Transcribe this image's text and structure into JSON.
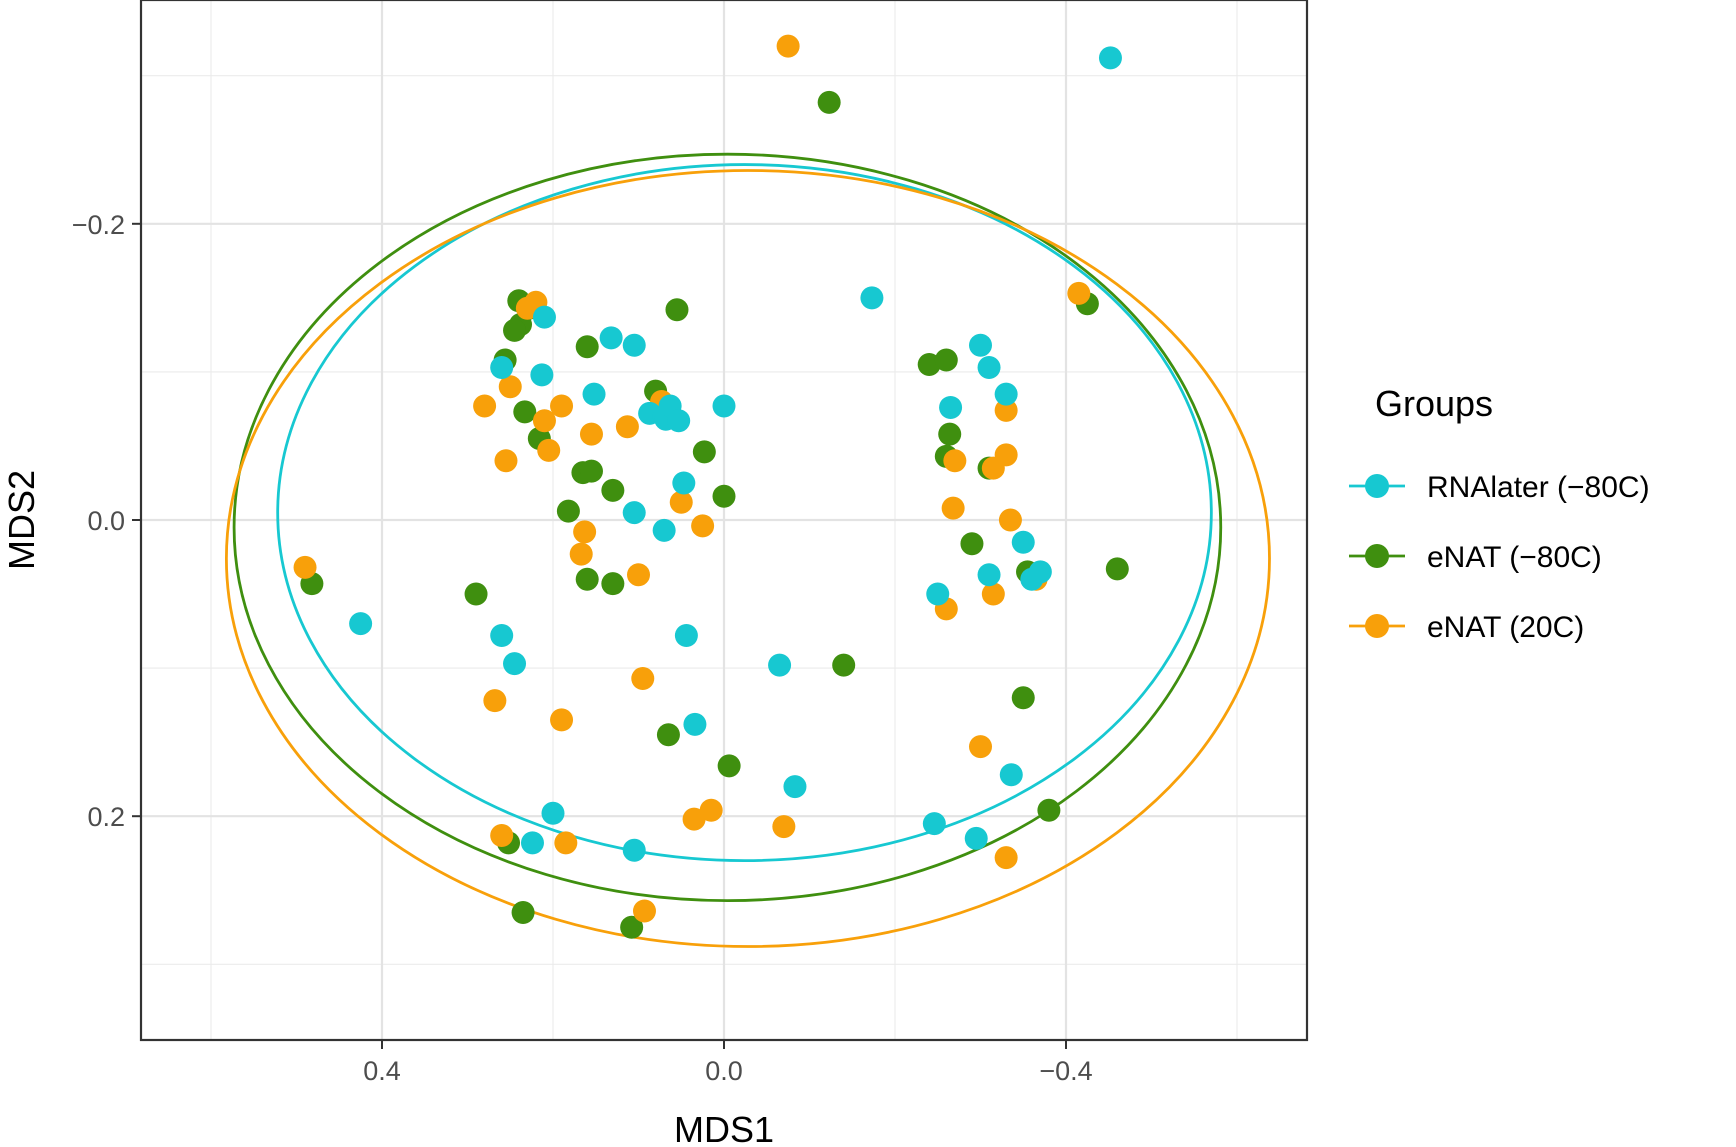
{
  "chart_data": {
    "type": "scatter",
    "xlabel": "MDS1",
    "ylabel": "MDS2",
    "x_reversed": true,
    "y_reversed": true,
    "xlim": [
      0.68,
      -0.68
    ],
    "ylim": [
      -0.35,
      0.35
    ],
    "x_ticks": [
      0.4,
      0.0,
      -0.4
    ],
    "x_tick_labels": [
      "0.4",
      "0.0",
      "−0.4"
    ],
    "y_ticks": [
      -0.2,
      0.0,
      0.2
    ],
    "y_tick_labels": [
      "−0.2",
      "0.0",
      "0.2"
    ],
    "grid": true,
    "legend": {
      "title": "Groups",
      "position": "right"
    },
    "series": [
      {
        "name": "RNAlater (−80C)",
        "color": "#17c8d1",
        "ellipse": {
          "center": [
            -0.024,
            -0.005
          ],
          "rx": 0.546,
          "ry": 0.235
        },
        "points": [
          [
            -0.452,
            -0.312
          ],
          [
            -0.173,
            -0.15
          ],
          [
            -0.3,
            -0.118
          ],
          [
            -0.31,
            -0.103
          ],
          [
            -0.33,
            -0.085
          ],
          [
            -0.265,
            -0.076
          ],
          [
            0.132,
            -0.123
          ],
          [
            0.105,
            -0.118
          ],
          [
            0.21,
            -0.137
          ],
          [
            0.26,
            -0.103
          ],
          [
            0.213,
            -0.098
          ],
          [
            0.152,
            -0.085
          ],
          [
            0.087,
            -0.072
          ],
          [
            0.07,
            -0.07
          ],
          [
            0.068,
            -0.068
          ],
          [
            0.063,
            -0.077
          ],
          [
            0.053,
            -0.067
          ],
          [
            0.0,
            -0.077
          ],
          [
            0.047,
            -0.025
          ],
          [
            0.105,
            -0.005
          ],
          [
            0.07,
            0.007
          ],
          [
            -0.35,
            0.015
          ],
          [
            -0.36,
            0.04
          ],
          [
            -0.37,
            0.035
          ],
          [
            -0.31,
            0.037
          ],
          [
            -0.25,
            0.05
          ],
          [
            0.425,
            0.07
          ],
          [
            0.26,
            0.078
          ],
          [
            0.245,
            0.097
          ],
          [
            0.044,
            0.078
          ],
          [
            -0.065,
            0.098
          ],
          [
            0.034,
            0.138
          ],
          [
            -0.336,
            0.172
          ],
          [
            -0.083,
            0.18
          ],
          [
            0.2,
            0.198
          ],
          [
            -0.246,
            0.205
          ],
          [
            0.224,
            0.218
          ],
          [
            0.105,
            0.223
          ],
          [
            -0.295,
            0.215
          ]
        ]
      },
      {
        "name": "eNAT (−80C)",
        "color": "#3f8f0f",
        "ellipse": {
          "center": [
            -0.004,
            0.005
          ],
          "rx": 0.577,
          "ry": 0.252
        },
        "points": [
          [
            -0.123,
            -0.282
          ],
          [
            -0.425,
            -0.146
          ],
          [
            0.055,
            -0.142
          ],
          [
            0.24,
            -0.148
          ],
          [
            0.228,
            -0.143
          ],
          [
            0.238,
            -0.132
          ],
          [
            0.245,
            -0.128
          ],
          [
            0.16,
            -0.117
          ],
          [
            0.256,
            -0.108
          ],
          [
            -0.24,
            -0.105
          ],
          [
            -0.26,
            -0.108
          ],
          [
            0.08,
            -0.087
          ],
          [
            0.233,
            -0.073
          ],
          [
            -0.264,
            -0.058
          ],
          [
            0.216,
            -0.055
          ],
          [
            -0.26,
            -0.043
          ],
          [
            0.023,
            -0.046
          ],
          [
            -0.31,
            -0.035
          ],
          [
            0.165,
            -0.032
          ],
          [
            0.155,
            -0.033
          ],
          [
            0.13,
            -0.02
          ],
          [
            0.0,
            -0.016
          ],
          [
            0.182,
            -0.006
          ],
          [
            -0.29,
            0.016
          ],
          [
            -0.46,
            0.033
          ],
          [
            0.16,
            0.04
          ],
          [
            0.13,
            0.043
          ],
          [
            -0.355,
            0.035
          ],
          [
            0.29,
            0.05
          ],
          [
            0.482,
            0.043
          ],
          [
            -0.14,
            0.098
          ],
          [
            -0.35,
            0.12
          ],
          [
            0.065,
            0.145
          ],
          [
            -0.006,
            0.166
          ],
          [
            -0.38,
            0.196
          ],
          [
            0.252,
            0.218
          ],
          [
            0.235,
            0.265
          ],
          [
            0.108,
            0.275
          ]
        ]
      },
      {
        "name": "eNAT (20C)",
        "color": "#f8a00a",
        "ellipse": {
          "center": [
            -0.028,
            0.026
          ],
          "rx": 0.61,
          "ry": 0.262
        },
        "points": [
          [
            -0.075,
            -0.32
          ],
          [
            -0.415,
            -0.153
          ],
          [
            0.23,
            -0.143
          ],
          [
            0.22,
            -0.147
          ],
          [
            0.073,
            -0.08
          ],
          [
            0.28,
            -0.077
          ],
          [
            0.25,
            -0.09
          ],
          [
            0.19,
            -0.077
          ],
          [
            0.21,
            -0.067
          ],
          [
            0.113,
            -0.063
          ],
          [
            0.155,
            -0.058
          ],
          [
            -0.33,
            -0.074
          ],
          [
            -0.33,
            -0.044
          ],
          [
            0.205,
            -0.047
          ],
          [
            0.255,
            -0.04
          ],
          [
            -0.27,
            -0.04
          ],
          [
            -0.315,
            -0.035
          ],
          [
            0.05,
            -0.012
          ],
          [
            -0.268,
            -0.008
          ],
          [
            0.025,
            0.004
          ],
          [
            -0.335,
            0.0
          ],
          [
            0.163,
            0.008
          ],
          [
            0.167,
            0.023
          ],
          [
            0.1,
            0.037
          ],
          [
            -0.365,
            0.04
          ],
          [
            -0.26,
            0.06
          ],
          [
            -0.315,
            0.05
          ],
          [
            0.49,
            0.032
          ],
          [
            0.095,
            0.107
          ],
          [
            0.268,
            0.122
          ],
          [
            0.19,
            0.135
          ],
          [
            -0.3,
            0.153
          ],
          [
            0.035,
            0.202
          ],
          [
            0.015,
            0.196
          ],
          [
            -0.07,
            0.207
          ],
          [
            0.26,
            0.213
          ],
          [
            0.185,
            0.218
          ],
          [
            0.093,
            0.264
          ],
          [
            -0.33,
            0.228
          ]
        ]
      }
    ]
  }
}
